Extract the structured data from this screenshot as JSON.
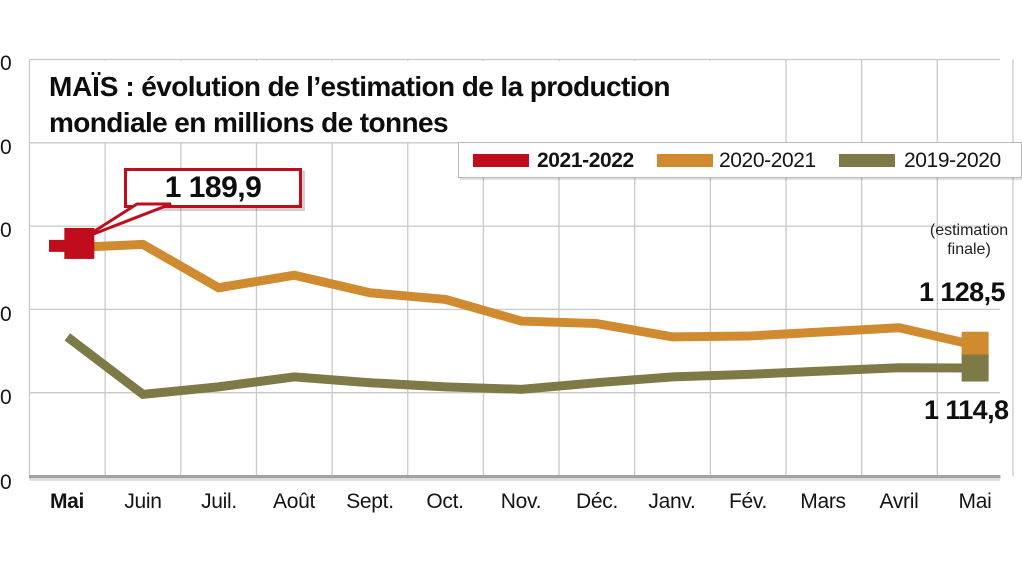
{
  "title": {
    "product": "MAÏS",
    "separator": " : ",
    "line1_rest": "évolution de l’estimation de la production",
    "line2": "mondiale en millions de tonnes"
  },
  "legend": {
    "items": [
      {
        "label": "2021-2022",
        "color": "#c00d1d",
        "emphasis": true
      },
      {
        "label": "2020-2021",
        "color": "#d08b30",
        "emphasis": false
      },
      {
        "label": "2019-2020",
        "color": "#7e7a47",
        "emphasis": false
      }
    ]
  },
  "annotations": {
    "start_value_label": "1 189,9",
    "end_value_2020_2021": "1 128,5",
    "end_value_2019_2020": "1 114,8",
    "final_note_line1": "(estimation",
    "final_note_line2": "finale)"
  },
  "y_axis": {
    "visible_tick_text": [
      "0",
      "0",
      "0",
      "0",
      "0",
      "0"
    ]
  },
  "x_axis": {
    "months": [
      "Mai",
      "Juin",
      "Juil.",
      "Août",
      "Sept.",
      "Oct.",
      "Nov.",
      "Déc.",
      "Janv.",
      "Fév.",
      "Mars",
      "Avril",
      "Mai"
    ]
  },
  "chart_data": {
    "type": "line",
    "title": "MAÏS : évolution de l’estimation de la production mondiale en millions de tonnes",
    "ylabel": "millions de tonnes",
    "ylim": [
      1050,
      1300
    ],
    "ytick_step": 50,
    "grid": true,
    "legend_position": "top-right",
    "categories": [
      "Mai",
      "Juin",
      "Juil.",
      "Août",
      "Sept.",
      "Oct.",
      "Nov.",
      "Déc.",
      "Janv.",
      "Fév.",
      "Mars",
      "Avril",
      "Mai"
    ],
    "series": [
      {
        "name": "2021-2022",
        "color": "#c00d1d",
        "values": [
          1189.9,
          null,
          null,
          null,
          null,
          null,
          null,
          null,
          null,
          null,
          null,
          null,
          null
        ]
      },
      {
        "name": "2020-2021",
        "color": "#d08b30",
        "values": [
          1187,
          1189,
          1163,
          1170.5,
          1160,
          1156,
          1143,
          1141.5,
          1133.5,
          1134,
          1136.5,
          1139,
          1128.5
        ]
      },
      {
        "name": "2019-2020",
        "color": "#7e7a47",
        "values": [
          1133.5,
          1099,
          1103.5,
          1109.5,
          1106,
          1103.5,
          1102,
          1106,
          1109.5,
          1111,
          1113,
          1115,
          1114.8
        ]
      }
    ]
  }
}
